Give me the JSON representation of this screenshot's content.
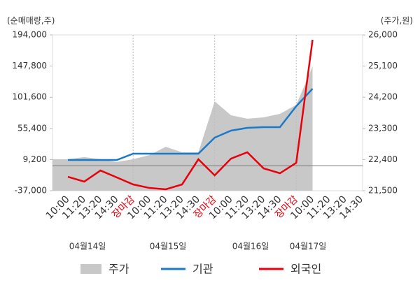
{
  "chart_data": {
    "type": "line",
    "y_axis_label": "(순매매량,주)",
    "y2_axis_label": "(주가,원)",
    "categories": [
      "10:00",
      "11:20",
      "13:20",
      "14:30",
      "장마감",
      "10:00",
      "11:20",
      "13:20",
      "14:30",
      "장마감",
      "10:00",
      "11:20",
      "13:20",
      "14:30",
      "장마감",
      "10:00",
      "11:20",
      "13:20",
      "14:30"
    ],
    "day_labels": [
      "04월14일",
      "04월15일",
      "04월16일",
      "04월17일"
    ],
    "day_boundaries": [
      4,
      9,
      14
    ],
    "highlight_color": "#e8000b",
    "ylim": [
      -37000,
      194000
    ],
    "yticks": [
      {
        "value": -37000,
        "label": "-37,000"
      },
      {
        "value": 9200,
        "label": "9,200"
      },
      {
        "value": 55400,
        "label": "55,400"
      },
      {
        "value": 101600,
        "label": "101,600"
      },
      {
        "value": 147800,
        "label": "147,800"
      },
      {
        "value": 194000,
        "label": "194,000"
      }
    ],
    "y2lim": [
      21500,
      26000
    ],
    "y2ticks": [
      {
        "value": 21500,
        "label": "21,500"
      },
      {
        "value": 22400,
        "label": "22,400"
      },
      {
        "value": 23300,
        "label": "23,300"
      },
      {
        "value": 24200,
        "label": "24,200"
      },
      {
        "value": 25100,
        "label": "25,100"
      },
      {
        "value": 26000,
        "label": "26,000"
      }
    ],
    "series": [
      {
        "name": "주가",
        "color": "#c8c8c8",
        "axis": "y2",
        "values": [
          22410,
          22470,
          22410,
          22330,
          22410,
          22530,
          22770,
          22610,
          22610,
          24080,
          23680,
          23580,
          23620,
          23720,
          23980,
          25090,
          null,
          null,
          null
        ]
      },
      {
        "name": "기관",
        "color": "#1a7ac8",
        "values": [
          8600,
          8600,
          8600,
          8600,
          17900,
          17900,
          17900,
          17900,
          17900,
          41700,
          52100,
          56200,
          57300,
          57300,
          88300,
          114200,
          null,
          null,
          null
        ]
      },
      {
        "name": "외국인",
        "color": "#e8000b",
        "values": [
          -16300,
          -23500,
          -7000,
          -17300,
          -27700,
          -32900,
          -34900,
          -27700,
          9600,
          -14200,
          10600,
          20000,
          -3900,
          -11100,
          4400,
          186700,
          null,
          null,
          null
        ]
      }
    ]
  }
}
